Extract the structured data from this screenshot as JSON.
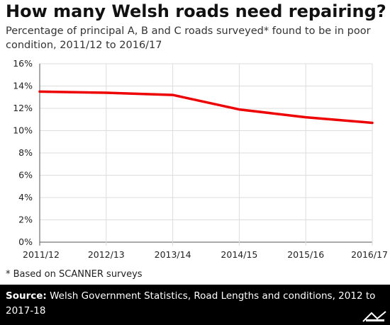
{
  "header": {
    "title": "How many Welsh roads need repairing?",
    "subtitle": "Percentage of principal A, B and C roads surveyed* found to be in poor condition, 2011/12 to 2016/17"
  },
  "footnote": "* Based on SCANNER surveys",
  "source": {
    "label": "Source:",
    "text": "Welsh Government Statistics, Road Lengths and conditions, 2012 to 2017-18"
  },
  "logo_icon": "full-fact-logo-icon",
  "colors": {
    "line": "#ee0000",
    "grid": "#dddddd",
    "footer_bg": "#000000"
  },
  "chart_data": {
    "type": "line",
    "categories": [
      "2011/12",
      "2012/13",
      "2013/14",
      "2014/15",
      "2015/16",
      "2016/17"
    ],
    "series": [
      {
        "values": [
          13.5,
          13.4,
          13.2,
          11.9,
          11.2,
          10.7
        ]
      }
    ],
    "ylim": [
      0,
      16
    ],
    "yticks": [
      0,
      2,
      4,
      6,
      8,
      10,
      12,
      14,
      16
    ],
    "ytick_suffix": "%",
    "grid": true,
    "xlabel": "",
    "ylabel": ""
  }
}
